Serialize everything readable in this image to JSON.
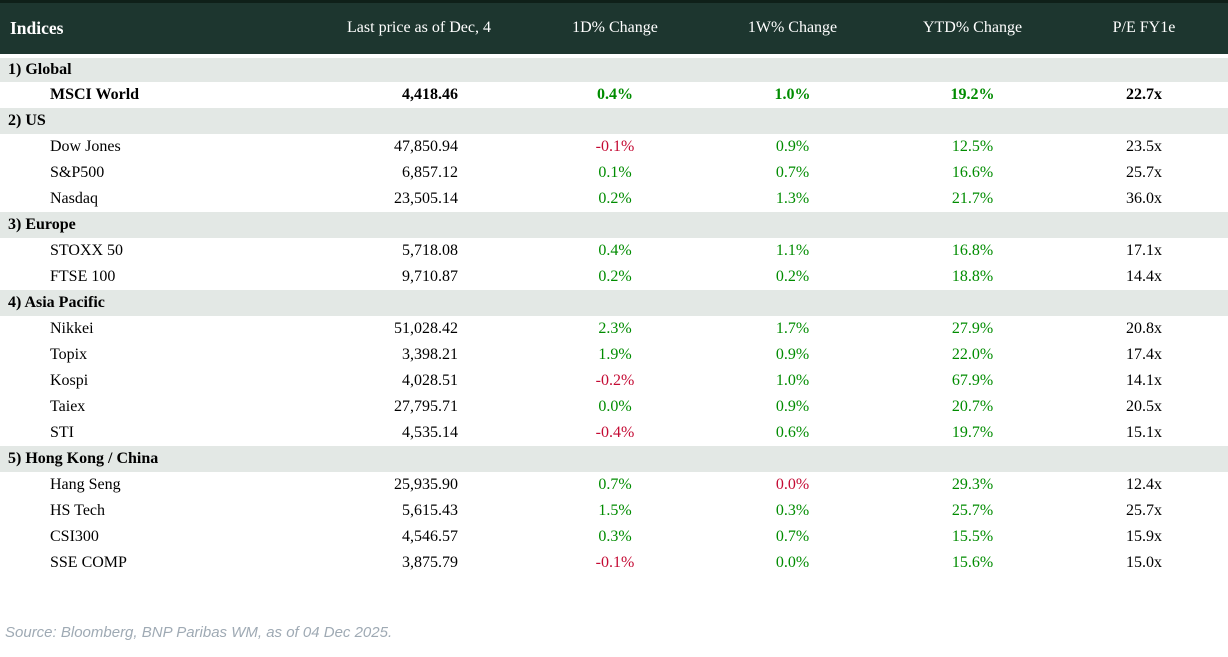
{
  "table": {
    "columns": [
      "Indices",
      "Last price as of Dec, 4",
      "1D% Change",
      "1W% Change",
      "YTD% Change",
      "P/E FY1e"
    ],
    "sections": [
      {
        "label": "1) Global",
        "rows": [
          {
            "name": "MSCI World",
            "price": "4,418.46",
            "d1": "0.4%",
            "d1_dir": "pos",
            "w1": "1.0%",
            "w1_dir": "pos",
            "ytd": "19.2%",
            "ytd_dir": "pos",
            "pe": "22.7x",
            "bold": true
          }
        ]
      },
      {
        "label": "2) US",
        "rows": [
          {
            "name": "Dow Jones",
            "price": "47,850.94",
            "d1": "-0.1%",
            "d1_dir": "neg",
            "w1": "0.9%",
            "w1_dir": "pos",
            "ytd": "12.5%",
            "ytd_dir": "pos",
            "pe": "23.5x",
            "bold": false
          },
          {
            "name": "S&P500",
            "price": "6,857.12",
            "d1": "0.1%",
            "d1_dir": "pos",
            "w1": "0.7%",
            "w1_dir": "pos",
            "ytd": "16.6%",
            "ytd_dir": "pos",
            "pe": "25.7x",
            "bold": false
          },
          {
            "name": "Nasdaq",
            "price": "23,505.14",
            "d1": "0.2%",
            "d1_dir": "pos",
            "w1": "1.3%",
            "w1_dir": "pos",
            "ytd": "21.7%",
            "ytd_dir": "pos",
            "pe": "36.0x",
            "bold": false
          }
        ]
      },
      {
        "label": "3) Europe",
        "rows": [
          {
            "name": "STOXX 50",
            "price": "5,718.08",
            "d1": "0.4%",
            "d1_dir": "pos",
            "w1": "1.1%",
            "w1_dir": "pos",
            "ytd": "16.8%",
            "ytd_dir": "pos",
            "pe": "17.1x",
            "bold": false
          },
          {
            "name": "FTSE 100",
            "price": "9,710.87",
            "d1": "0.2%",
            "d1_dir": "pos",
            "w1": "0.2%",
            "w1_dir": "pos",
            "ytd": "18.8%",
            "ytd_dir": "pos",
            "pe": "14.4x",
            "bold": false
          }
        ]
      },
      {
        "label": "4) Asia Pacific",
        "rows": [
          {
            "name": "Nikkei",
            "price": "51,028.42",
            "d1": "2.3%",
            "d1_dir": "pos",
            "w1": "1.7%",
            "w1_dir": "pos",
            "ytd": "27.9%",
            "ytd_dir": "pos",
            "pe": "20.8x",
            "bold": false
          },
          {
            "name": "Topix",
            "price": "3,398.21",
            "d1": "1.9%",
            "d1_dir": "pos",
            "w1": "0.9%",
            "w1_dir": "pos",
            "ytd": "22.0%",
            "ytd_dir": "pos",
            "pe": "17.4x",
            "bold": false
          },
          {
            "name": "Kospi",
            "price": "4,028.51",
            "d1": "-0.2%",
            "d1_dir": "neg",
            "w1": "1.0%",
            "w1_dir": "pos",
            "ytd": "67.9%",
            "ytd_dir": "pos",
            "pe": "14.1x",
            "bold": false
          },
          {
            "name": "Taiex",
            "price": "27,795.71",
            "d1": "0.0%",
            "d1_dir": "pos",
            "w1": "0.9%",
            "w1_dir": "pos",
            "ytd": "20.7%",
            "ytd_dir": "pos",
            "pe": "20.5x",
            "bold": false
          },
          {
            "name": "STI",
            "price": "4,535.14",
            "d1": "-0.4%",
            "d1_dir": "neg",
            "w1": "0.6%",
            "w1_dir": "pos",
            "ytd": "19.7%",
            "ytd_dir": "pos",
            "pe": "15.1x",
            "bold": false
          }
        ]
      },
      {
        "label": "5) Hong Kong / China",
        "rows": [
          {
            "name": "Hang Seng",
            "price": "25,935.90",
            "d1": "0.7%",
            "d1_dir": "pos",
            "w1": "0.0%",
            "w1_dir": "neg",
            "ytd": "29.3%",
            "ytd_dir": "pos",
            "pe": "12.4x",
            "bold": false
          },
          {
            "name": "HS Tech",
            "price": "5,615.43",
            "d1": "1.5%",
            "d1_dir": "pos",
            "w1": "0.3%",
            "w1_dir": "pos",
            "ytd": "25.7%",
            "ytd_dir": "pos",
            "pe": "25.7x",
            "bold": false
          },
          {
            "name": "CSI300",
            "price": "4,546.57",
            "d1": "0.3%",
            "d1_dir": "pos",
            "w1": "0.7%",
            "w1_dir": "pos",
            "ytd": "15.5%",
            "ytd_dir": "pos",
            "pe": "15.9x",
            "bold": false
          },
          {
            "name": "SSE COMP",
            "price": "3,875.79",
            "d1": "-0.1%",
            "d1_dir": "neg",
            "w1": "0.0%",
            "w1_dir": "pos",
            "ytd": "15.6%",
            "ytd_dir": "pos",
            "pe": "15.0x",
            "bold": false
          }
        ]
      }
    ]
  },
  "chart_data": {
    "type": "table",
    "title": "Indices",
    "columns": [
      "Indices",
      "Last price as of Dec, 4",
      "1D% Change",
      "1W% Change",
      "YTD% Change",
      "P/E FY1e"
    ],
    "rows": [
      [
        "1) Global",
        "",
        "",
        "",
        "",
        ""
      ],
      [
        "MSCI World",
        "4,418.46",
        "0.4%",
        "1.0%",
        "19.2%",
        "22.7x"
      ],
      [
        "2) US",
        "",
        "",
        "",
        "",
        ""
      ],
      [
        "Dow Jones",
        "47,850.94",
        "-0.1%",
        "0.9%",
        "12.5%",
        "23.5x"
      ],
      [
        "S&P500",
        "6,857.12",
        "0.1%",
        "0.7%",
        "16.6%",
        "25.7x"
      ],
      [
        "Nasdaq",
        "23,505.14",
        "0.2%",
        "1.3%",
        "21.7%",
        "36.0x"
      ],
      [
        "3) Europe",
        "",
        "",
        "",
        "",
        ""
      ],
      [
        "STOXX 50",
        "5,718.08",
        "0.4%",
        "1.1%",
        "16.8%",
        "17.1x"
      ],
      [
        "FTSE 100",
        "9,710.87",
        "0.2%",
        "0.2%",
        "18.8%",
        "14.4x"
      ],
      [
        "4) Asia Pacific",
        "",
        "",
        "",
        "",
        ""
      ],
      [
        "Nikkei",
        "51,028.42",
        "2.3%",
        "1.7%",
        "27.9%",
        "20.8x"
      ],
      [
        "Topix",
        "3,398.21",
        "1.9%",
        "0.9%",
        "22.0%",
        "17.4x"
      ],
      [
        "Kospi",
        "4,028.51",
        "-0.2%",
        "1.0%",
        "67.9%",
        "14.1x"
      ],
      [
        "Taiex",
        "27,795.71",
        "0.0%",
        "0.9%",
        "20.7%",
        "20.5x"
      ],
      [
        "STI",
        "4,535.14",
        "-0.4%",
        "0.6%",
        "19.7%",
        "15.1x"
      ],
      [
        "5) Hong Kong / China",
        "",
        "",
        "",
        "",
        ""
      ],
      [
        "Hang Seng",
        "25,935.90",
        "0.7%",
        "0.0%",
        "29.3%",
        "12.4x"
      ],
      [
        "HS Tech",
        "5,615.43",
        "1.5%",
        "0.3%",
        "25.7%",
        "25.7x"
      ],
      [
        "CSI300",
        "4,546.57",
        "0.3%",
        "0.7%",
        "15.5%",
        "15.9x"
      ],
      [
        "SSE COMP",
        "3,875.79",
        "-0.1%",
        "0.0%",
        "15.6%",
        "15.0x"
      ]
    ],
    "legend": "green = positive change, red = negative change"
  },
  "colors": {
    "header_bg": "#1d362f",
    "section_bg": "#e3e8e5",
    "positive": "#008c00",
    "negative": "#c40a33",
    "source_text": "#9faab4"
  },
  "source": "Source: Bloomberg, BNP Paribas WM, as of 04 Dec 2025."
}
